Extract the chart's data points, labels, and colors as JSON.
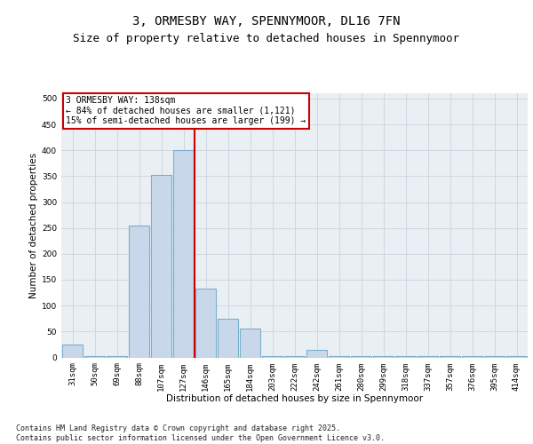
{
  "title_line1": "3, ORMESBY WAY, SPENNYMOOR, DL16 7FN",
  "title_line2": "Size of property relative to detached houses in Spennymoor",
  "xlabel": "Distribution of detached houses by size in Spennymoor",
  "ylabel": "Number of detached properties",
  "bar_labels": [
    "31sqm",
    "50sqm",
    "69sqm",
    "88sqm",
    "107sqm",
    "127sqm",
    "146sqm",
    "165sqm",
    "184sqm",
    "203sqm",
    "222sqm",
    "242sqm",
    "261sqm",
    "280sqm",
    "299sqm",
    "318sqm",
    "337sqm",
    "357sqm",
    "376sqm",
    "395sqm",
    "414sqm"
  ],
  "bar_values": [
    25,
    2,
    2,
    255,
    352,
    401,
    133,
    75,
    55,
    2,
    2,
    15,
    2,
    2,
    2,
    2,
    2,
    2,
    2,
    2,
    2
  ],
  "bar_color": "#c8d8ea",
  "bar_edge_color": "#7ab0cc",
  "vline_x": 5.5,
  "vline_color": "#cc0000",
  "annotation_text": "3 ORMESBY WAY: 138sqm\n← 84% of detached houses are smaller (1,121)\n15% of semi-detached houses are larger (199) →",
  "annotation_box_color": "#cc0000",
  "ylim": [
    0,
    510
  ],
  "yticks": [
    0,
    50,
    100,
    150,
    200,
    250,
    300,
    350,
    400,
    450,
    500
  ],
  "grid_color": "#ccd8e2",
  "bg_color": "#eaeff4",
  "footnote": "Contains HM Land Registry data © Crown copyright and database right 2025.\nContains public sector information licensed under the Open Government Licence v3.0.",
  "title_fontsize": 10,
  "subtitle_fontsize": 9,
  "axis_label_fontsize": 7.5,
  "tick_fontsize": 6.5,
  "annotation_fontsize": 7,
  "footnote_fontsize": 6
}
